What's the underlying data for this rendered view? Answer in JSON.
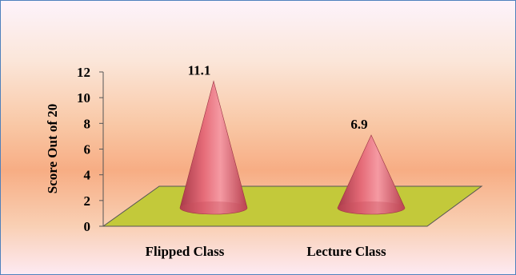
{
  "chart_data": {
    "type": "bar",
    "style": "3d-cone",
    "categories": [
      "Flipped Class",
      "Lecture Class"
    ],
    "series": [
      {
        "values": [
          11.1,
          6.9
        ],
        "data_labels": [
          "11.1",
          "6.9"
        ]
      }
    ],
    "title": "",
    "xlabel": "",
    "ylabel": "Score Out of 20",
    "ylim": [
      0,
      12
    ],
    "yticks": [
      0,
      2,
      4,
      6,
      8,
      10,
      12
    ],
    "ytick_labels": [
      "0",
      "2",
      "4",
      "6",
      "8",
      "10",
      "12"
    ],
    "grid": false,
    "legend": "none",
    "colors": {
      "cone": "#e0616e",
      "floor": "#c3c93a",
      "border": "#4f81bd"
    }
  }
}
